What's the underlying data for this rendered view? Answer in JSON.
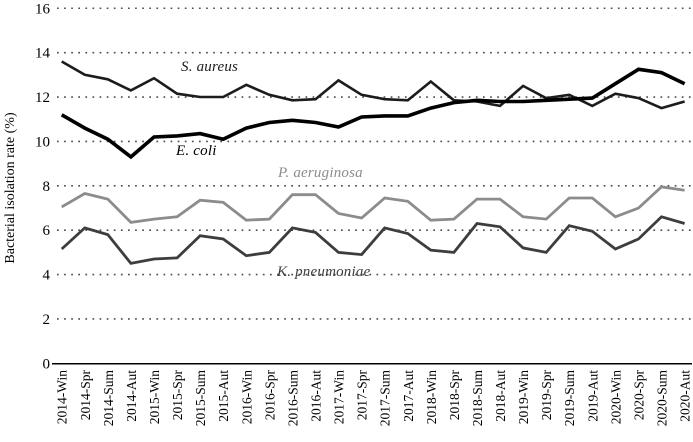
{
  "chart_data": {
    "type": "line",
    "title": "",
    "xlabel": "",
    "ylabel": "Bacterial isolation rate (%)",
    "ylim": [
      0,
      16
    ],
    "y_ticks": [
      0,
      2,
      4,
      6,
      8,
      10,
      12,
      14,
      16
    ],
    "grid": "horizontal-dotted",
    "legend_position": "inline-annotations",
    "x_labels": [
      "2014-Win",
      "2014-Spr",
      "2014-Sum",
      "2014-Aut",
      "2015-Win",
      "2015-Spr",
      "2015-Sum",
      "2015-Aut",
      "2016-Win",
      "2016-Spr",
      "2016-Sum",
      "2016-Aut",
      "2017-Win",
      "2017-Spr",
      "2017-Sum",
      "2017-Aut",
      "2018-Win",
      "2018-Spr",
      "2018-Sum",
      "2018-Aut",
      "2019-Win",
      "2019-Spr",
      "2019-Sum",
      "2019-Aut",
      "2020-Win",
      "2020-Spr",
      "2020-Sum",
      "2020-Aut"
    ],
    "series": [
      {
        "name": "S. aureus",
        "color": "#1c1c1c",
        "stroke_width": 2.6,
        "values": [
          13.6,
          13.0,
          12.8,
          12.3,
          12.85,
          12.15,
          12.0,
          12.0,
          12.55,
          12.1,
          11.85,
          11.9,
          12.75,
          12.1,
          11.9,
          11.85,
          12.7,
          11.85,
          11.8,
          11.6,
          12.5,
          11.95,
          12.1,
          11.6,
          12.15,
          11.95,
          11.5,
          11.8
        ]
      },
      {
        "name": "E. coli",
        "color": "#000000",
        "stroke_width": 3.6,
        "values": [
          11.2,
          10.6,
          10.1,
          9.3,
          10.2,
          10.25,
          10.35,
          10.1,
          10.6,
          10.85,
          10.95,
          10.85,
          10.65,
          11.1,
          11.15,
          11.15,
          11.5,
          11.75,
          11.85,
          11.8,
          11.8,
          11.85,
          11.9,
          11.95,
          12.6,
          13.25,
          13.1,
          12.6
        ]
      },
      {
        "name": "P. aeruginosa",
        "color": "#8c8c8c",
        "stroke_width": 2.8,
        "values": [
          7.05,
          7.65,
          7.4,
          6.35,
          6.5,
          6.6,
          7.35,
          7.25,
          6.45,
          6.5,
          7.6,
          7.6,
          6.75,
          6.55,
          7.45,
          7.3,
          6.45,
          6.5,
          7.4,
          7.4,
          6.6,
          6.5,
          7.45,
          7.45,
          6.6,
          7.0,
          7.95,
          7.8
        ]
      },
      {
        "name": "K. pneumoniae",
        "color": "#3d3d3d",
        "stroke_width": 2.8,
        "values": [
          5.15,
          6.1,
          5.8,
          4.5,
          4.7,
          4.75,
          5.75,
          5.6,
          4.85,
          5.0,
          6.1,
          5.9,
          5.0,
          4.9,
          6.1,
          5.85,
          5.1,
          5.0,
          6.3,
          6.15,
          5.2,
          5.0,
          6.2,
          5.95,
          5.15,
          5.6,
          6.6,
          6.3
        ]
      }
    ],
    "gridline_color": "#4d4d4d",
    "axis_color": "#000000"
  }
}
